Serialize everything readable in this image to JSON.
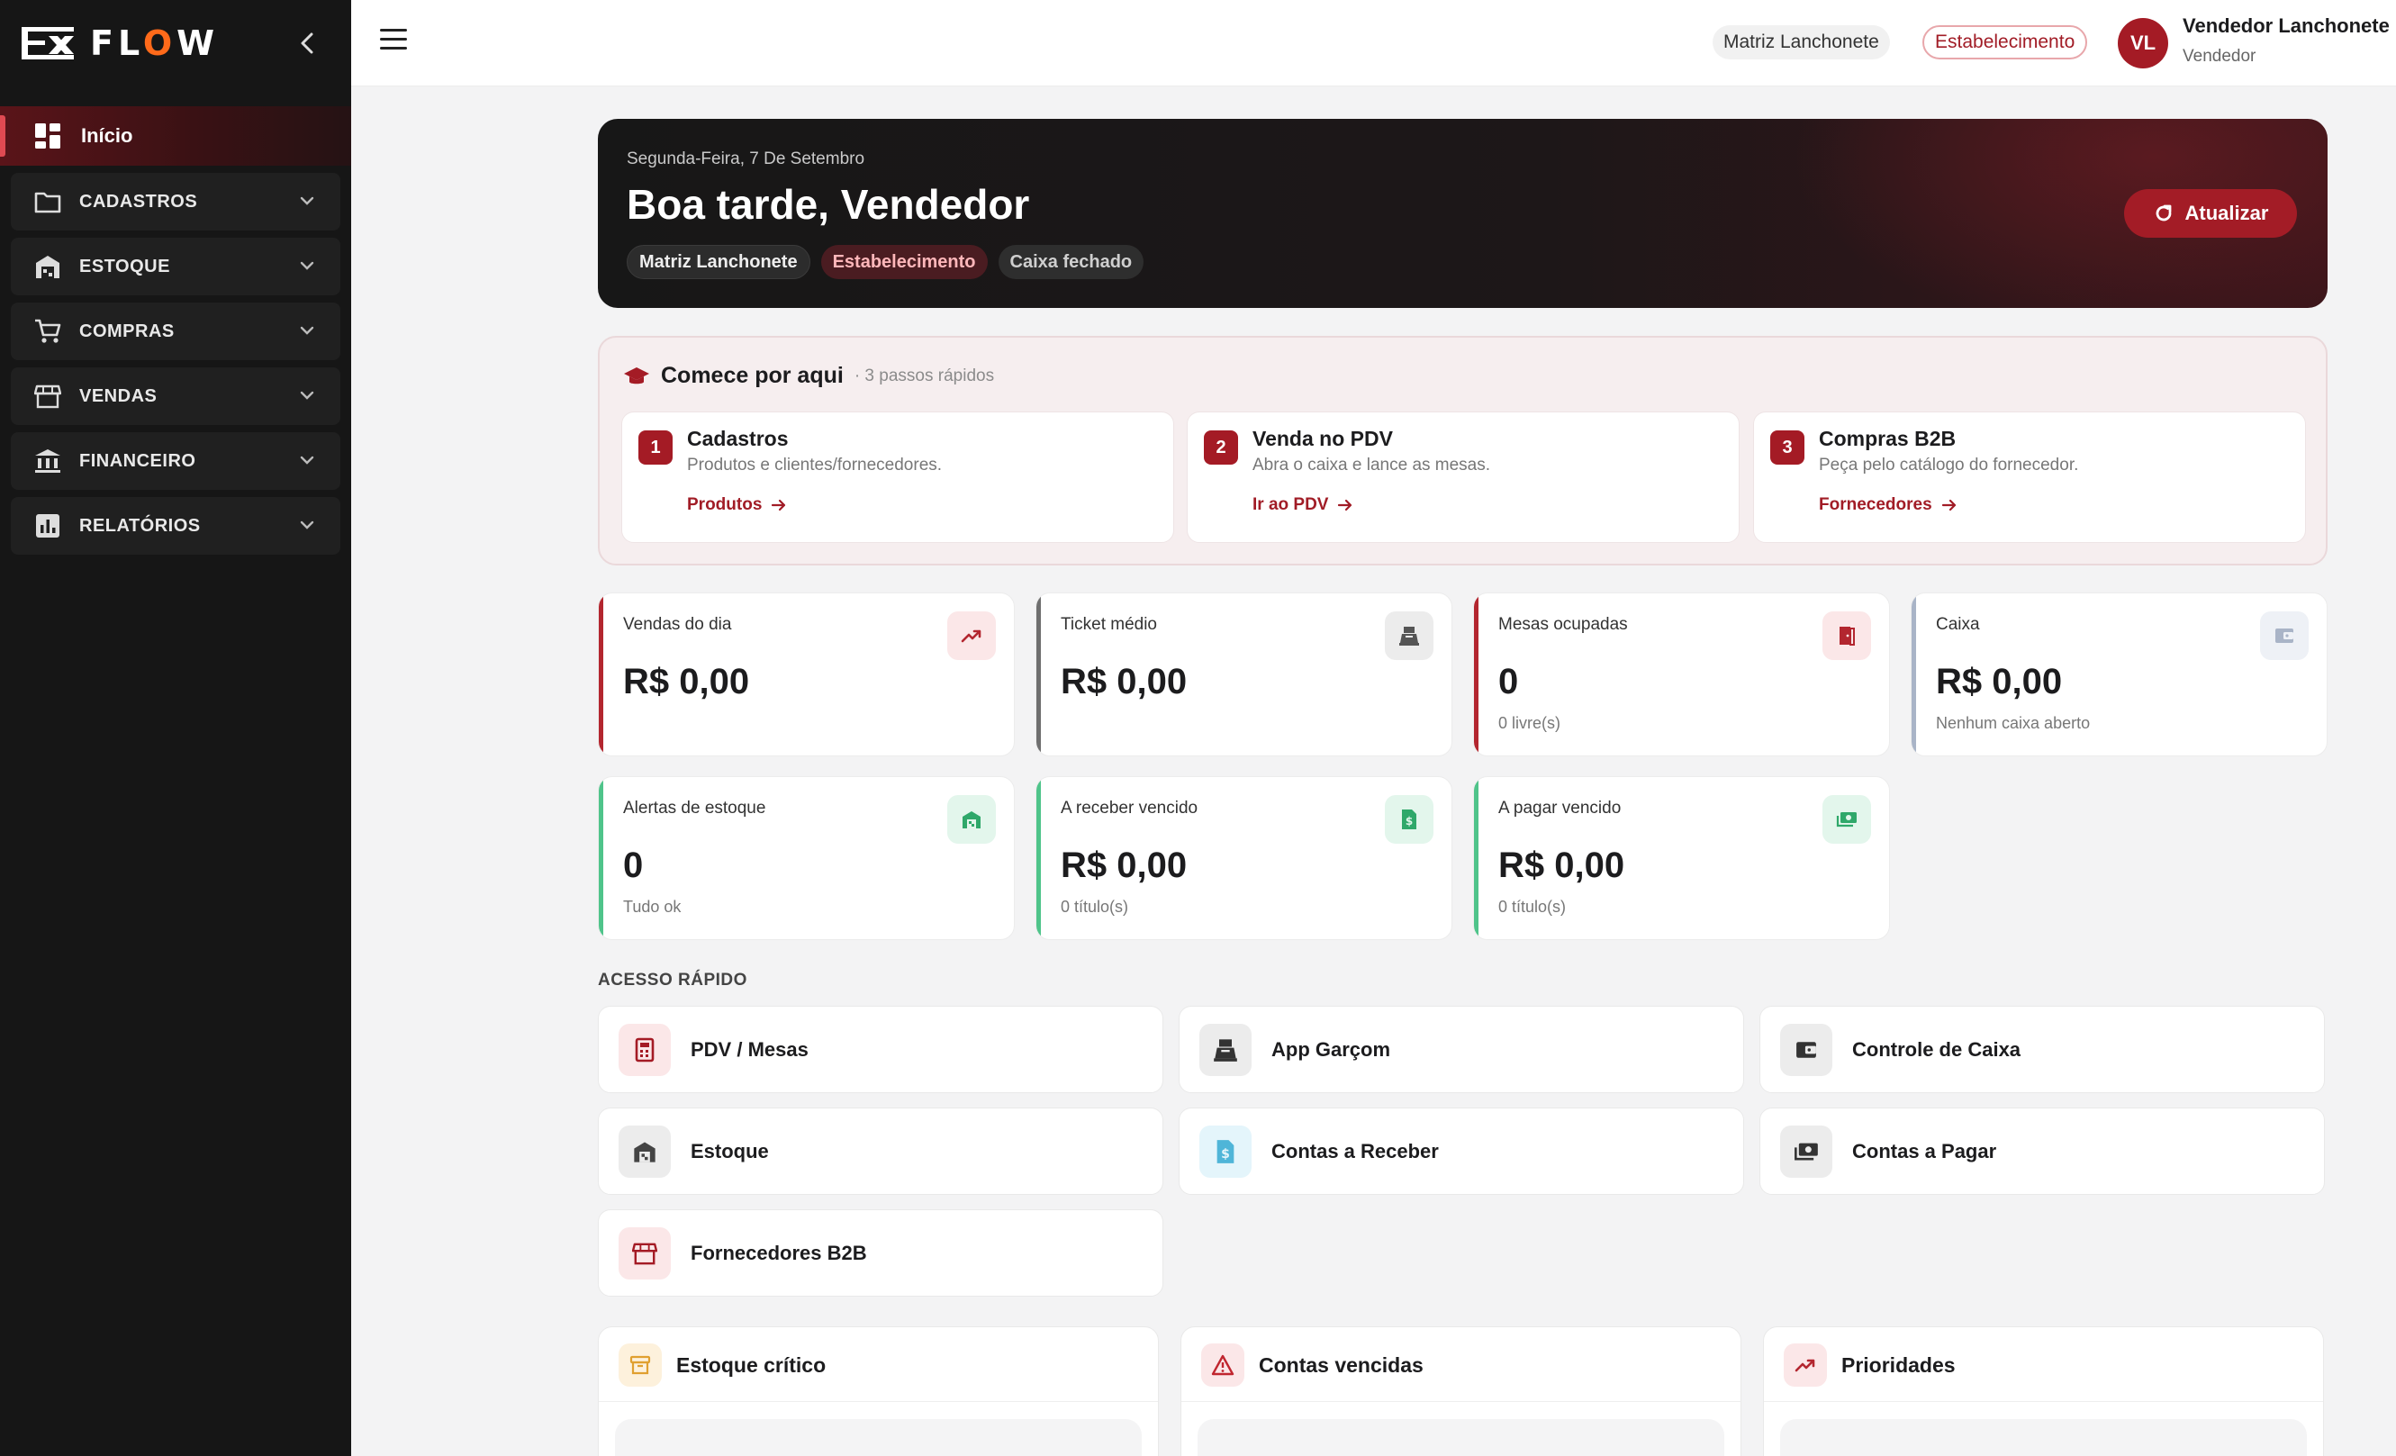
{
  "app": {
    "name_prefix": "FL",
    "name_o": "O",
    "name_suffix": "W"
  },
  "sidebar": {
    "home_label": "Início",
    "items": [
      {
        "label": "CADASTROS",
        "icon": "folder-icon"
      },
      {
        "label": "ESTOQUE",
        "icon": "warehouse-icon"
      },
      {
        "label": "COMPRAS",
        "icon": "cart-icon"
      },
      {
        "label": "VENDAS",
        "icon": "store-icon"
      },
      {
        "label": "FINANCEIRO",
        "icon": "bank-icon"
      },
      {
        "label": "RELATÓRIOS",
        "icon": "bar-chart-icon"
      }
    ]
  },
  "topbar": {
    "company": "Matriz Lanchonete",
    "establishment": "Estabelecimento",
    "avatar_initials": "VL",
    "user_name": "Vendedor Lanchonete",
    "user_role": "Vendedor"
  },
  "hero": {
    "date": "Segunda-Feira, 7 De Setembro",
    "greeting": "Boa tarde, Vendedor",
    "chips": [
      "Matriz Lanchonete",
      "Estabelecimento",
      "Caixa fechado"
    ],
    "refresh_label": "Atualizar"
  },
  "onboarding": {
    "title": "Comece por aqui",
    "subtitle": "· 3 passos rápidos",
    "steps": [
      {
        "num": "1",
        "title": "Cadastros",
        "desc": "Produtos e clientes/fornecedores.",
        "link": "Produtos"
      },
      {
        "num": "2",
        "title": "Venda no PDV",
        "desc": "Abra o caixa e lance as mesas.",
        "link": "Ir ao PDV"
      },
      {
        "num": "3",
        "title": "Compras B2B",
        "desc": "Peça pelo catálogo do fornecedor.",
        "link": "Fornecedores"
      }
    ]
  },
  "kpis": [
    {
      "label": "Vendas do dia",
      "value": "R$ 0,00",
      "sub": "",
      "accent": "#b3262f"
    },
    {
      "label": "Ticket médio",
      "value": "R$ 0,00",
      "sub": "",
      "accent": "#6f6f6f"
    },
    {
      "label": "Mesas ocupadas",
      "value": "0",
      "sub": "0 livre(s)",
      "accent": "#b3262f"
    },
    {
      "label": "Caixa",
      "value": "R$ 0,00",
      "sub": "Nenhum caixa aberto",
      "accent": "#a9b4c7"
    },
    {
      "label": "Alertas de estoque",
      "value": "0",
      "sub": "Tudo ok",
      "accent": "#4fc48a"
    },
    {
      "label": "A receber vencido",
      "value": "R$ 0,00",
      "sub": "0 título(s)",
      "accent": "#4fc48a"
    },
    {
      "label": "A pagar vencido",
      "value": "R$ 0,00",
      "sub": "0 título(s)",
      "accent": "#4fc48a"
    }
  ],
  "quick_access": {
    "title": "ACESSO RÁPIDO",
    "items": [
      {
        "label": "PDV / Mesas",
        "icon": "pos-terminal-icon"
      },
      {
        "label": "App Garçom",
        "icon": "cash-register-icon"
      },
      {
        "label": "Controle de Caixa",
        "icon": "wallet-icon"
      },
      {
        "label": "Estoque",
        "icon": "warehouse-icon"
      },
      {
        "label": "Contas a Receber",
        "icon": "receipt-dollar-icon"
      },
      {
        "label": "Contas a Pagar",
        "icon": "cash-icon"
      },
      {
        "label": "Fornecedores B2B",
        "icon": "store-icon"
      }
    ]
  },
  "panels": [
    {
      "title": "Estoque crítico",
      "icon": "archive-icon"
    },
    {
      "title": "Contas vencidas",
      "icon": "warning-icon"
    },
    {
      "title": "Prioridades",
      "icon": "trending-up-icon"
    }
  ],
  "colors": {
    "brand": "#a41b25",
    "sidebar_bg": "#161616",
    "logo_accent": "#ff6a1a"
  }
}
